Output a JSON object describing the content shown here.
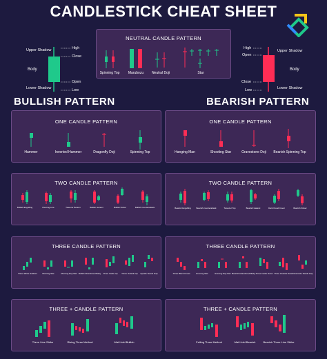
{
  "title": "CANDLESTICK CHEAT SHEET",
  "colors": {
    "background": "#1d1a3f",
    "panel": "#3d2856",
    "panel_border": "#6b4a86",
    "bull": "#1fc98b",
    "bear": "#ff2d55"
  },
  "anatomy_bull": {
    "upper_shadow": "Upper Shadow",
    "body": "Body",
    "lower_shadow": "Lower Shadow",
    "high": "High",
    "close": "Close",
    "open": "Open",
    "low": "Low"
  },
  "anatomy_bear": {
    "high": "High",
    "open": "Open",
    "close": "Close",
    "low": "Low",
    "upper_shadow": "Upper Shadow",
    "body": "Body",
    "lower_shadow": "Lower Shadow"
  },
  "neutral": {
    "title": "NEUTRAL CANDLE PATTERN",
    "items": [
      "Spinning Top",
      "Marubozu",
      "Neutral Doji",
      "Star"
    ]
  },
  "bullish_heading": "BULLISH PATTERN",
  "bearish_heading": "BEARISH PATTERN",
  "bullish": {
    "one_title": "ONE CANDLE PATTERN",
    "one_items": [
      "Hammer",
      "Inverted Hammer",
      "Dragonfly Doji",
      "Spinning Top"
    ],
    "two_title": "TWO CANDLE PATTERN",
    "two_items": [
      "Bullish Engulfing",
      "Piercing Line",
      "Tweezer Bottom",
      "Bullish Harami",
      "Bullish Kicker",
      "Bullish Counterattack"
    ],
    "three_title": "THREE CANDLE PATTERN",
    "three_items": [
      "Three White Soldiers",
      "Morning Star",
      "Morning Doji Star",
      "Bullish Abandoned Baby",
      "Three Inside Up",
      "Three Outside Up",
      "Upside Tasuki Gap"
    ],
    "plus_title": "THREE + CANDLE PATTERN",
    "plus_items": [
      "Three Line Strike",
      "Rising Three Method",
      "Mat Hold Bullish"
    ]
  },
  "bearish": {
    "one_title": "ONE CANDLE PATTERN",
    "one_items": [
      "Hanging Man",
      "Shooting Star",
      "Gravestone Doji",
      "Bearish Spinning Top"
    ],
    "two_title": "TWO CANDLE PATTERN",
    "two_items": [
      "Bearish Engulfing",
      "Bearish counterattack",
      "Tweezer Top",
      "Bearish Harami",
      "Dark Cloud Cover",
      "Bearish Kicker"
    ],
    "three_title": "THREE CANDLE PATTERN",
    "three_items": [
      "Three Black Crows",
      "Evening Star",
      "Evening Doji Star",
      "Bearish Abandoned Baby",
      "Three Inside Down",
      "Three Outside Down",
      "Downside Tasuki Gap"
    ],
    "plus_title": "THREE + CANDLE PATTERN",
    "plus_items": [
      "Falling Three Method",
      "Mat Hold Bearish",
      "Bearish Three Line Strike"
    ]
  }
}
